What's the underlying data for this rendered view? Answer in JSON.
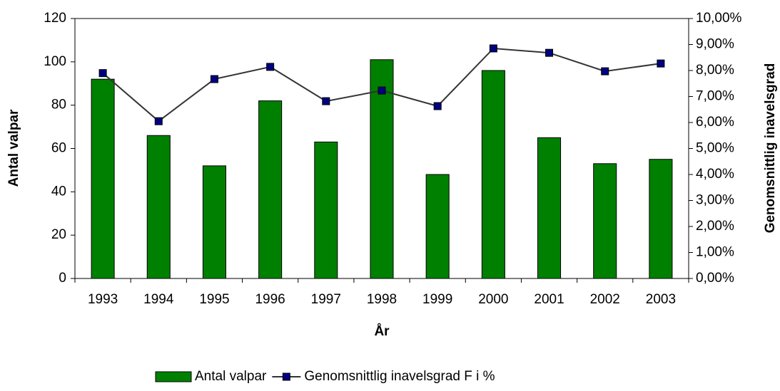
{
  "chart_data": {
    "type": "bar",
    "categories": [
      "1993",
      "1994",
      "1995",
      "1996",
      "1997",
      "1998",
      "1999",
      "2000",
      "2001",
      "2002",
      "2003"
    ],
    "series": [
      {
        "name": "Antal valpar",
        "type": "bar",
        "color": "#008000",
        "values": [
          92,
          66,
          52,
          82,
          63,
          101,
          48,
          96,
          65,
          53,
          55
        ]
      },
      {
        "name": "Genomsnittlig inavelsgrad F i %",
        "type": "line",
        "axis": "y2",
        "color": "#333333",
        "marker_color": "#000080",
        "values": [
          7.9,
          6.05,
          7.67,
          8.14,
          6.82,
          7.23,
          6.63,
          8.85,
          8.68,
          7.97,
          8.27
        ]
      }
    ],
    "ylim": [
      0,
      120
    ],
    "yticks": [
      0,
      20,
      40,
      60,
      80,
      100,
      120
    ],
    "y2lim": [
      0,
      10
    ],
    "y2ticks": [
      {
        "value": 0,
        "label": "0,00%"
      },
      {
        "value": 1,
        "label": "1,00%"
      },
      {
        "value": 2,
        "label": "2,00%"
      },
      {
        "value": 3,
        "label": "3,00%"
      },
      {
        "value": 4,
        "label": "4,00%"
      },
      {
        "value": 5,
        "label": "5,00%"
      },
      {
        "value": 6,
        "label": "6,00%"
      },
      {
        "value": 7,
        "label": "7,00%"
      },
      {
        "value": 8,
        "label": "8,00%"
      },
      {
        "value": 9,
        "label": "9,00%"
      },
      {
        "value": 10,
        "label": "10,00%"
      }
    ],
    "xlabel": "År",
    "ylabel": "Antal valpar",
    "y2label": "Genomsnittlig inavelsgrad",
    "grid": false,
    "legend": "bottom"
  }
}
